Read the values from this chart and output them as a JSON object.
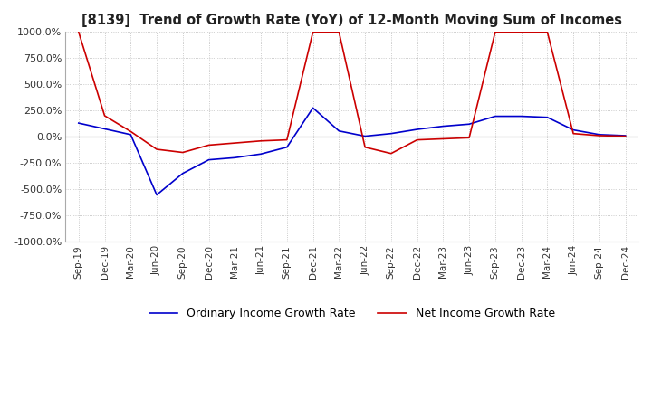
{
  "title": "[8139]  Trend of Growth Rate (YoY) of 12-Month Moving Sum of Incomes",
  "ylim": [
    -1000,
    1000
  ],
  "yticks": [
    1000,
    750,
    500,
    250,
    0,
    -250,
    -500,
    -750,
    -1000
  ],
  "ytick_labels": [
    "1000.0%",
    "750.0%",
    "500.0%",
    "250.0%",
    "0.0%",
    "-250.0%",
    "-500.0%",
    "-750.0%",
    "-1000.0%"
  ],
  "background_color": "#ffffff",
  "plot_bg_color": "#ffffff",
  "grid_color": "#bbbbbb",
  "ordinary_color": "#0000cc",
  "net_color": "#cc0000",
  "legend_ordinary": "Ordinary Income Growth Rate",
  "legend_net": "Net Income Growth Rate",
  "x_labels": [
    "Sep-19",
    "Dec-19",
    "Mar-20",
    "Jun-20",
    "Sep-20",
    "Dec-20",
    "Mar-21",
    "Jun-21",
    "Sep-21",
    "Dec-21",
    "Mar-22",
    "Jun-22",
    "Sep-22",
    "Dec-22",
    "Mar-23",
    "Jun-23",
    "Sep-23",
    "Dec-23",
    "Mar-24",
    "Jun-24",
    "Sep-24",
    "Dec-24"
  ],
  "ordinary_data": [
    130,
    75,
    20,
    -555,
    -350,
    -220,
    -200,
    -165,
    -100,
    275,
    55,
    5,
    30,
    70,
    100,
    120,
    195,
    195,
    185,
    65,
    20,
    10
  ],
  "net_data": [
    1000,
    200,
    50,
    -120,
    -150,
    -80,
    -60,
    -40,
    -30,
    1000,
    1000,
    -100,
    -160,
    -30,
    -20,
    -10,
    1000,
    1000,
    1000,
    30,
    10,
    5
  ]
}
